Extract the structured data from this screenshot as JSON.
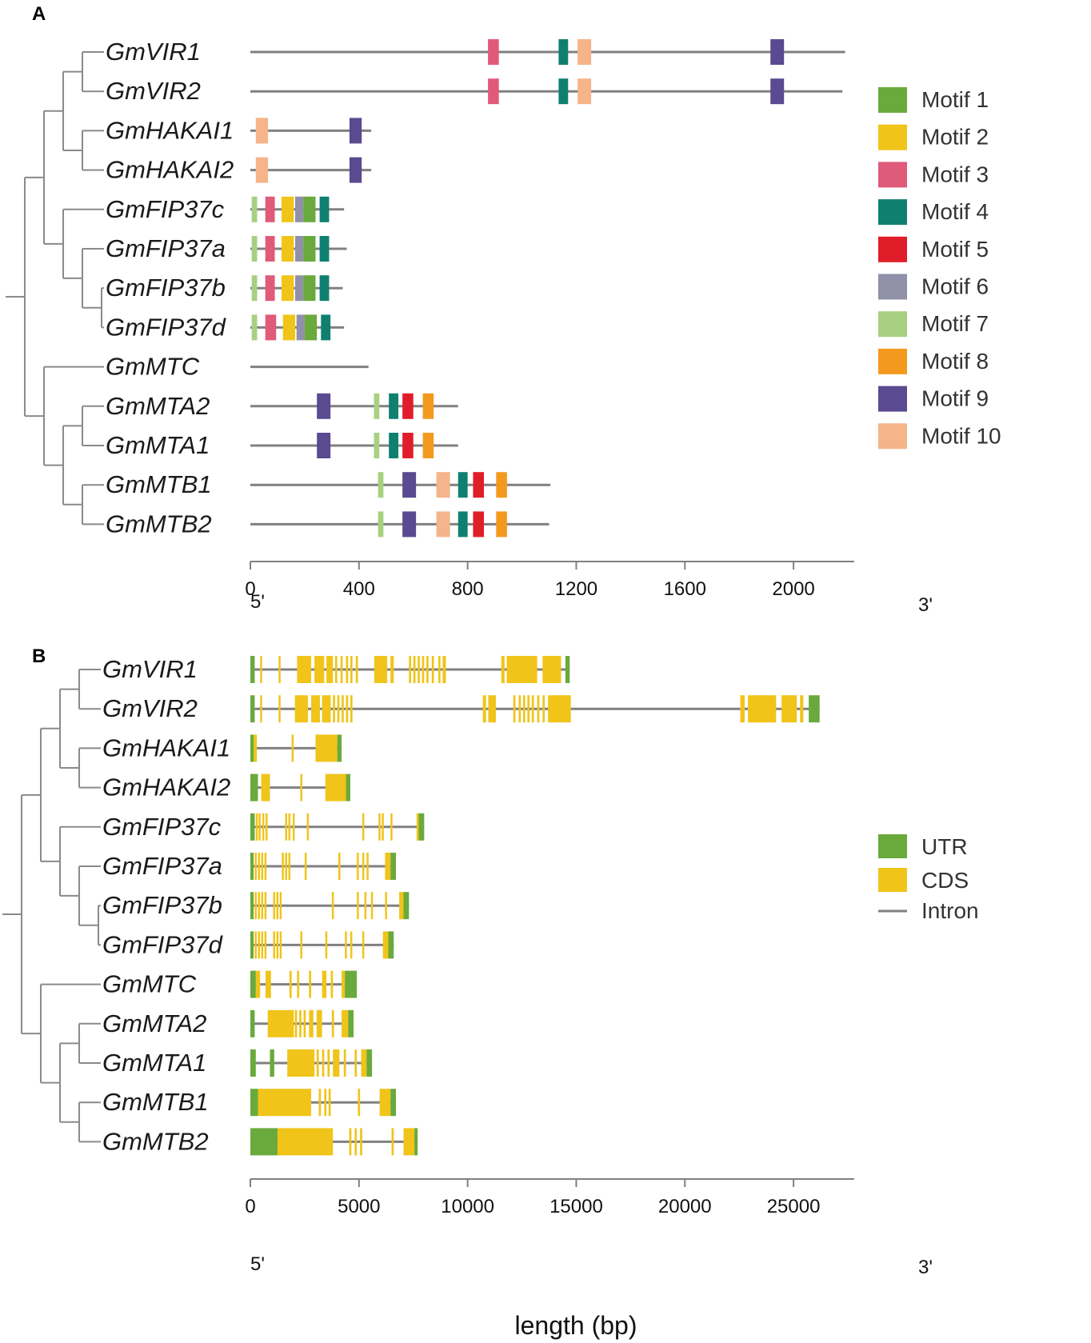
{
  "colors": {
    "line": "#808080",
    "tree": "#8a8a8a",
    "utr": "#6aaa3c",
    "cds": "#f0c419",
    "motifs": [
      "#6aaa3c",
      "#f0c419",
      "#e05a7a",
      "#0f8070",
      "#e01e2a",
      "#9090a8",
      "#a8d080",
      "#f39a1e",
      "#5a4a8f",
      "#f5b48a"
    ]
  },
  "panel_a": {
    "label": "A",
    "axis": {
      "min": 0,
      "max": 2200,
      "ticks": [
        0,
        400,
        800,
        1200,
        1600,
        2000
      ],
      "tick_labels": [
        "0",
        "400",
        "800",
        "1200",
        "1600",
        "2000"
      ],
      "left_end": "5'",
      "right_end": "3'"
    },
    "genes": [
      {
        "name": "GmVIR1",
        "length": 2190,
        "motifs": [
          {
            "m": 3,
            "s": 875,
            "e": 915
          },
          {
            "m": 4,
            "s": 1135,
            "e": 1170
          },
          {
            "m": 10,
            "s": 1205,
            "e": 1255
          },
          {
            "m": 9,
            "s": 1915,
            "e": 1965
          }
        ]
      },
      {
        "name": "GmVIR2",
        "length": 2180,
        "motifs": [
          {
            "m": 3,
            "s": 875,
            "e": 915
          },
          {
            "m": 4,
            "s": 1135,
            "e": 1170
          },
          {
            "m": 10,
            "s": 1205,
            "e": 1255
          },
          {
            "m": 9,
            "s": 1915,
            "e": 1965
          }
        ]
      },
      {
        "name": "GmHAKAI1",
        "length": 445,
        "motifs": [
          {
            "m": 10,
            "s": 20,
            "e": 65
          },
          {
            "m": 9,
            "s": 365,
            "e": 410
          }
        ]
      },
      {
        "name": "GmHAKAI2",
        "length": 445,
        "motifs": [
          {
            "m": 10,
            "s": 20,
            "e": 65
          },
          {
            "m": 9,
            "s": 365,
            "e": 410
          }
        ]
      },
      {
        "name": "GmFIP37c",
        "length": 345,
        "motifs": [
          {
            "m": 7,
            "s": 5,
            "e": 25
          },
          {
            "m": 3,
            "s": 55,
            "e": 90
          },
          {
            "m": 2,
            "s": 115,
            "e": 160
          },
          {
            "m": 6,
            "s": 165,
            "e": 195
          },
          {
            "m": 1,
            "s": 195,
            "e": 240
          },
          {
            "m": 4,
            "s": 255,
            "e": 290
          }
        ]
      },
      {
        "name": "GmFIP37a",
        "length": 355,
        "motifs": [
          {
            "m": 7,
            "s": 5,
            "e": 25
          },
          {
            "m": 3,
            "s": 55,
            "e": 90
          },
          {
            "m": 2,
            "s": 115,
            "e": 160
          },
          {
            "m": 6,
            "s": 165,
            "e": 195
          },
          {
            "m": 1,
            "s": 195,
            "e": 240
          },
          {
            "m": 4,
            "s": 255,
            "e": 290
          }
        ]
      },
      {
        "name": "GmFIP37b",
        "length": 340,
        "motifs": [
          {
            "m": 7,
            "s": 5,
            "e": 25
          },
          {
            "m": 3,
            "s": 55,
            "e": 90
          },
          {
            "m": 2,
            "s": 115,
            "e": 160
          },
          {
            "m": 6,
            "s": 165,
            "e": 195
          },
          {
            "m": 1,
            "s": 195,
            "e": 240
          },
          {
            "m": 4,
            "s": 255,
            "e": 290
          }
        ]
      },
      {
        "name": "GmFIP37d",
        "length": 345,
        "motifs": [
          {
            "m": 7,
            "s": 5,
            "e": 25
          },
          {
            "m": 3,
            "s": 55,
            "e": 95
          },
          {
            "m": 2,
            "s": 120,
            "e": 165
          },
          {
            "m": 6,
            "s": 170,
            "e": 200
          },
          {
            "m": 1,
            "s": 200,
            "e": 245
          },
          {
            "m": 4,
            "s": 260,
            "e": 295
          }
        ]
      },
      {
        "name": "GmMTC",
        "length": 435,
        "motifs": []
      },
      {
        "name": "GmMTA2",
        "length": 765,
        "motifs": [
          {
            "m": 9,
            "s": 245,
            "e": 295
          },
          {
            "m": 7,
            "s": 455,
            "e": 475
          },
          {
            "m": 4,
            "s": 510,
            "e": 545
          },
          {
            "m": 5,
            "s": 560,
            "e": 600
          },
          {
            "m": 8,
            "s": 635,
            "e": 675
          }
        ]
      },
      {
        "name": "GmMTA1",
        "length": 765,
        "motifs": [
          {
            "m": 9,
            "s": 245,
            "e": 295
          },
          {
            "m": 7,
            "s": 455,
            "e": 475
          },
          {
            "m": 4,
            "s": 510,
            "e": 545
          },
          {
            "m": 5,
            "s": 560,
            "e": 600
          },
          {
            "m": 8,
            "s": 635,
            "e": 675
          }
        ]
      },
      {
        "name": "GmMTB1",
        "length": 1105,
        "motifs": [
          {
            "m": 7,
            "s": 470,
            "e": 490
          },
          {
            "m": 9,
            "s": 560,
            "e": 610
          },
          {
            "m": 10,
            "s": 685,
            "e": 735
          },
          {
            "m": 4,
            "s": 765,
            "e": 800
          },
          {
            "m": 5,
            "s": 820,
            "e": 860
          },
          {
            "m": 8,
            "s": 905,
            "e": 945
          }
        ]
      },
      {
        "name": "GmMTB2",
        "length": 1100,
        "motifs": [
          {
            "m": 7,
            "s": 470,
            "e": 490
          },
          {
            "m": 9,
            "s": 560,
            "e": 610
          },
          {
            "m": 10,
            "s": 685,
            "e": 735
          },
          {
            "m": 4,
            "s": 765,
            "e": 800
          },
          {
            "m": 5,
            "s": 820,
            "e": 860
          },
          {
            "m": 8,
            "s": 905,
            "e": 945
          }
        ]
      }
    ],
    "legend": [
      "Motif 1",
      "Motif 2",
      "Motif 3",
      "Motif 4",
      "Motif 5",
      "Motif 6",
      "Motif 7",
      "Motif 8",
      "Motif 9",
      "Motif 10"
    ]
  },
  "panel_b": {
    "label": "B",
    "axis": {
      "min": 0,
      "max": 27500,
      "ticks": [
        0,
        5000,
        10000,
        15000,
        20000,
        25000
      ],
      "tick_labels": [
        "0",
        "5000",
        "10000",
        "15000",
        "20000",
        "25000"
      ],
      "left_end": "5'",
      "right_end": "3'",
      "title": "length (bp)"
    },
    "genes": [
      {
        "name": "GmVIR1",
        "length": 14700,
        "utr": [
          [
            0,
            200
          ],
          [
            14500,
            14700
          ]
        ],
        "cds": [
          [
            450,
            520
          ],
          [
            1300,
            1380
          ],
          [
            2150,
            2800
          ],
          [
            2950,
            3400
          ],
          [
            3500,
            3800
          ],
          [
            3900,
            4000
          ],
          [
            4150,
            4250
          ],
          [
            4400,
            4500
          ],
          [
            4600,
            4700
          ],
          [
            4850,
            4950
          ],
          [
            5700,
            6300
          ],
          [
            6450,
            6600
          ],
          [
            7300,
            7400
          ],
          [
            7500,
            7600
          ],
          [
            7700,
            7800
          ],
          [
            7900,
            8000
          ],
          [
            8100,
            8200
          ],
          [
            8350,
            8450
          ],
          [
            8650,
            8750
          ],
          [
            8850,
            9000
          ],
          [
            11550,
            11700
          ],
          [
            11800,
            13200
          ],
          [
            13450,
            14300
          ]
        ]
      },
      {
        "name": "GmVIR2",
        "length": 26200,
        "utr": [
          [
            0,
            200
          ],
          [
            25700,
            26200
          ]
        ],
        "cds": [
          [
            450,
            520
          ],
          [
            1300,
            1380
          ],
          [
            2050,
            2650
          ],
          [
            2800,
            3200
          ],
          [
            3300,
            3700
          ],
          [
            3800,
            3900
          ],
          [
            4000,
            4100
          ],
          [
            4200,
            4300
          ],
          [
            4400,
            4500
          ],
          [
            4600,
            4700
          ],
          [
            10700,
            10850
          ],
          [
            10950,
            11300
          ],
          [
            12100,
            12200
          ],
          [
            12350,
            12450
          ],
          [
            12550,
            12650
          ],
          [
            12750,
            12850
          ],
          [
            12950,
            13050
          ],
          [
            13200,
            13300
          ],
          [
            13450,
            13550
          ],
          [
            13700,
            14750
          ],
          [
            22550,
            22750
          ],
          [
            22900,
            24200
          ],
          [
            24450,
            25150
          ],
          [
            25300,
            25450
          ]
        ]
      },
      {
        "name": "GmHAKAI1",
        "length": 4200,
        "utr": [
          [
            0,
            150
          ],
          [
            4000,
            4200
          ]
        ],
        "cds": [
          [
            150,
            300
          ],
          [
            1900,
            1950
          ],
          [
            3000,
            4000
          ]
        ]
      },
      {
        "name": "GmHAKAI2",
        "length": 4600,
        "utr": [
          [
            0,
            350
          ],
          [
            4400,
            4600
          ]
        ],
        "cds": [
          [
            500,
            900
          ],
          [
            2300,
            2350
          ],
          [
            3450,
            4400
          ]
        ]
      },
      {
        "name": "GmFIP37c",
        "length": 8000,
        "utr": [
          [
            0,
            200
          ],
          [
            7750,
            8000
          ]
        ],
        "cds": [
          [
            250,
            320
          ],
          [
            380,
            450
          ],
          [
            550,
            620
          ],
          [
            700,
            770
          ],
          [
            1600,
            1670
          ],
          [
            1750,
            1820
          ],
          [
            1950,
            2020
          ],
          [
            2600,
            2670
          ],
          [
            5150,
            5220
          ],
          [
            5900,
            5970
          ],
          [
            6050,
            6120
          ],
          [
            6450,
            6520
          ],
          [
            7650,
            7750
          ]
        ]
      },
      {
        "name": "GmFIP37a",
        "length": 6700,
        "utr": [
          [
            0,
            150
          ],
          [
            6450,
            6700
          ]
        ],
        "cds": [
          [
            200,
            270
          ],
          [
            350,
            420
          ],
          [
            500,
            570
          ],
          [
            650,
            720
          ],
          [
            1450,
            1520
          ],
          [
            1600,
            1670
          ],
          [
            1750,
            1820
          ],
          [
            2500,
            2570
          ],
          [
            4050,
            4120
          ],
          [
            4900,
            4970
          ],
          [
            5150,
            5220
          ],
          [
            5350,
            5420
          ],
          [
            6200,
            6450
          ]
        ]
      },
      {
        "name": "GmFIP37b",
        "length": 7300,
        "utr": [
          [
            0,
            150
          ],
          [
            7050,
            7300
          ]
        ],
        "cds": [
          [
            200,
            270
          ],
          [
            350,
            420
          ],
          [
            500,
            570
          ],
          [
            650,
            720
          ],
          [
            1050,
            1120
          ],
          [
            1200,
            1270
          ],
          [
            1350,
            1420
          ],
          [
            3750,
            3820
          ],
          [
            4900,
            4970
          ],
          [
            5250,
            5320
          ],
          [
            5550,
            5620
          ],
          [
            6200,
            6270
          ],
          [
            6850,
            7050
          ]
        ]
      },
      {
        "name": "GmFIP37d",
        "length": 6600,
        "utr": [
          [
            0,
            150
          ],
          [
            6350,
            6600
          ]
        ],
        "cds": [
          [
            200,
            270
          ],
          [
            350,
            420
          ],
          [
            500,
            570
          ],
          [
            650,
            720
          ],
          [
            1050,
            1120
          ],
          [
            1200,
            1270
          ],
          [
            1350,
            1420
          ],
          [
            2300,
            2370
          ],
          [
            3450,
            3520
          ],
          [
            4350,
            4420
          ],
          [
            4600,
            4670
          ],
          [
            5150,
            5220
          ],
          [
            6100,
            6350
          ]
        ]
      },
      {
        "name": "GmMTC",
        "length": 4900,
        "utr": [
          [
            0,
            250
          ],
          [
            4350,
            4900
          ]
        ],
        "cds": [
          [
            250,
            450
          ],
          [
            700,
            950
          ],
          [
            1800,
            1900
          ],
          [
            2150,
            2250
          ],
          [
            2700,
            2800
          ],
          [
            3300,
            3500
          ],
          [
            3700,
            3800
          ],
          [
            4200,
            4350
          ]
        ]
      },
      {
        "name": "GmMTA2",
        "length": 4750,
        "utr": [
          [
            0,
            200
          ],
          [
            4500,
            4750
          ]
        ],
        "cds": [
          [
            800,
            2000
          ],
          [
            2050,
            2150
          ],
          [
            2250,
            2350
          ],
          [
            2450,
            2550
          ],
          [
            2700,
            2900
          ],
          [
            3050,
            3300
          ],
          [
            3750,
            3850
          ],
          [
            4200,
            4500
          ]
        ]
      },
      {
        "name": "GmMTA1",
        "length": 5600,
        "utr": [
          [
            0,
            250
          ],
          [
            900,
            1100
          ],
          [
            5350,
            5600
          ]
        ],
        "cds": [
          [
            1700,
            2950
          ],
          [
            3050,
            3150
          ],
          [
            3300,
            3400
          ],
          [
            3550,
            3650
          ],
          [
            3800,
            4100
          ],
          [
            4300,
            4400
          ],
          [
            4800,
            4900
          ],
          [
            5100,
            5350
          ]
        ]
      },
      {
        "name": "GmMTB1",
        "length": 6700,
        "utr": [
          [
            0,
            350
          ],
          [
            6450,
            6700
          ]
        ],
        "cds": [
          [
            350,
            2800
          ],
          [
            3150,
            3250
          ],
          [
            3400,
            3500
          ],
          [
            3600,
            3700
          ],
          [
            4950,
            5050
          ],
          [
            5950,
            6450
          ]
        ]
      },
      {
        "name": "GmMTB2",
        "length": 7700,
        "utr": [
          [
            0,
            1250
          ],
          [
            7550,
            7700
          ]
        ],
        "cds": [
          [
            1250,
            3800
          ],
          [
            4550,
            4650
          ],
          [
            4800,
            4900
          ],
          [
            5050,
            5150
          ],
          [
            6500,
            6600
          ],
          [
            7050,
            7550
          ]
        ]
      }
    ],
    "legend": [
      "UTR",
      "CDS",
      "Intron"
    ]
  }
}
